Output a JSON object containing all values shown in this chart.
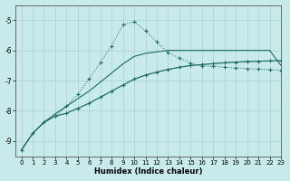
{
  "xlabel": "Humidex (Indice chaleur)",
  "xlim": [
    -0.5,
    23
  ],
  "ylim": [
    -9.5,
    -4.5
  ],
  "yticks": [
    -9,
    -8,
    -7,
    -6,
    -5
  ],
  "xticks": [
    0,
    1,
    2,
    3,
    4,
    5,
    6,
    7,
    8,
    9,
    10,
    11,
    12,
    13,
    14,
    15,
    16,
    17,
    18,
    19,
    20,
    21,
    22,
    23
  ],
  "bg_color": "#c8eaea",
  "line_color": "#1e6b5e",
  "line1_x": [
    0,
    1,
    2,
    3,
    4,
    5,
    6,
    7,
    8,
    9,
    10,
    11,
    12,
    13,
    14,
    15,
    16,
    17,
    18,
    19,
    20,
    21,
    22,
    23
  ],
  "line1_y": [
    -9.3,
    -8.75,
    -8.38,
    -8.1,
    -7.85,
    -7.6,
    -7.35,
    -7.05,
    -6.75,
    -6.45,
    -6.2,
    -6.1,
    -6.05,
    -6.0,
    -6.0,
    -6.0,
    -6.0,
    -6.0,
    -6.0,
    -6.0,
    -6.0,
    -6.0,
    -6.0,
    -6.5
  ],
  "line2_x": [
    0,
    1,
    2,
    3,
    4,
    5,
    6,
    7,
    8,
    9,
    10,
    11,
    12,
    13,
    14,
    15,
    16,
    17,
    18,
    19,
    20,
    21,
    22,
    23
  ],
  "line2_y": [
    -9.3,
    -8.75,
    -8.38,
    -8.18,
    -8.08,
    -7.92,
    -7.75,
    -7.55,
    -7.35,
    -7.15,
    -6.95,
    -6.82,
    -6.72,
    -6.63,
    -6.56,
    -6.5,
    -6.47,
    -6.44,
    -6.41,
    -6.39,
    -6.37,
    -6.36,
    -6.35,
    -6.34
  ],
  "line3_x": [
    3,
    4,
    5,
    6,
    7,
    8,
    9,
    10,
    11,
    12,
    13,
    14,
    15,
    16,
    17,
    18,
    19,
    20,
    21,
    22,
    23
  ],
  "line3_y": [
    -8.18,
    -7.85,
    -7.45,
    -6.95,
    -6.4,
    -5.85,
    -5.15,
    -5.05,
    -5.35,
    -5.72,
    -6.08,
    -6.25,
    -6.42,
    -6.52,
    -6.52,
    -6.56,
    -6.58,
    -6.6,
    -6.62,
    -6.64,
    -6.66
  ],
  "line4_x": [
    0,
    1,
    2,
    3,
    4,
    5,
    6,
    7,
    8,
    9,
    10,
    11,
    12,
    13,
    14,
    15,
    16,
    17,
    18,
    19,
    20,
    21,
    22,
    23
  ],
  "line4_y": [
    -9.3,
    -8.75,
    -8.38,
    -8.18,
    -8.08,
    -7.92,
    -7.75,
    -7.55,
    -7.35,
    -7.15,
    -6.95,
    -6.82,
    -6.72,
    -6.63,
    -6.56,
    -6.5,
    -6.47,
    -6.44,
    -6.41,
    -6.39,
    -6.37,
    -6.36,
    -6.35,
    -6.34
  ]
}
